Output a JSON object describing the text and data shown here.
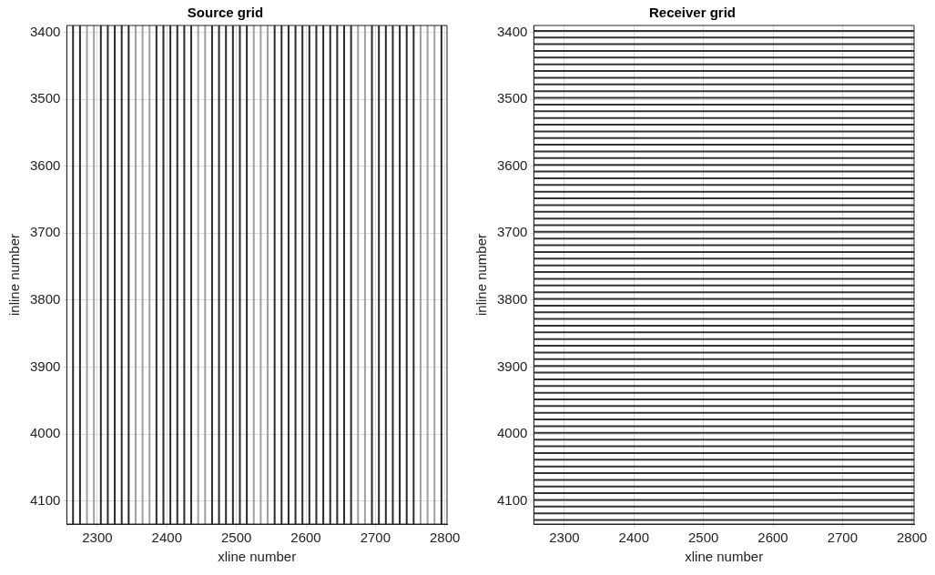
{
  "chart_data": [
    {
      "type": "line",
      "title": "Source grid",
      "xlabel": "xline number",
      "ylabel": "inline number",
      "xlim": [
        2256,
        2803
      ],
      "xticks": [
        2300,
        2400,
        2500,
        2600,
        2700,
        2800
      ],
      "ylim": [
        4134,
        3390
      ],
      "yticks": [
        3400,
        3500,
        3600,
        3700,
        3800,
        3900,
        4000,
        4100
      ],
      "grid": true,
      "series": [
        {
          "color": "#2b2b2b",
          "x": [
            2265,
            2265
          ],
          "values": [
            3390,
            4134
          ]
        },
        {
          "color": "#2b2b2b",
          "x": [
            2275,
            2275
          ],
          "values": [
            3390,
            4134
          ]
        },
        {
          "color": "#a0a0a0",
          "x": [
            2285,
            2285
          ],
          "values": [
            3390,
            4134
          ]
        },
        {
          "color": "#a0a0a0",
          "x": [
            2295,
            2295
          ],
          "values": [
            3390,
            4134
          ]
        },
        {
          "color": "#2b2b2b",
          "x": [
            2305,
            2305
          ],
          "values": [
            3390,
            4134
          ]
        },
        {
          "color": "#2b2b2b",
          "x": [
            2315,
            2315
          ],
          "values": [
            3390,
            4134
          ]
        },
        {
          "color": "#2b2b2b",
          "x": [
            2325,
            2325
          ],
          "values": [
            3390,
            4134
          ]
        },
        {
          "color": "#2b2b2b",
          "x": [
            2335,
            2335
          ],
          "values": [
            3390,
            4134
          ]
        },
        {
          "color": "#2b2b2b",
          "x": [
            2345,
            2345
          ],
          "values": [
            3390,
            4134
          ]
        },
        {
          "color": "#a0a0a0",
          "x": [
            2355,
            2355
          ],
          "values": [
            3390,
            4134
          ]
        },
        {
          "color": "#a0a0a0",
          "x": [
            2365,
            2365
          ],
          "values": [
            3390,
            4134
          ]
        },
        {
          "color": "#a0a0a0",
          "x": [
            2375,
            2375
          ],
          "values": [
            3390,
            4134
          ]
        },
        {
          "color": "#2b2b2b",
          "x": [
            2385,
            2385
          ],
          "values": [
            3390,
            4134
          ]
        },
        {
          "color": "#2b2b2b",
          "x": [
            2395,
            2395
          ],
          "values": [
            3390,
            4134
          ]
        },
        {
          "color": "#2b2b2b",
          "x": [
            2405,
            2405
          ],
          "values": [
            3390,
            4134
          ]
        },
        {
          "color": "#2b2b2b",
          "x": [
            2415,
            2415
          ],
          "values": [
            3390,
            4134
          ]
        },
        {
          "color": "#2b2b2b",
          "x": [
            2425,
            2425
          ],
          "values": [
            3390,
            4134
          ]
        },
        {
          "color": "#2b2b2b",
          "x": [
            2435,
            2435
          ],
          "values": [
            3390,
            4134
          ]
        },
        {
          "color": "#a0a0a0",
          "x": [
            2445,
            2445
          ],
          "values": [
            3390,
            4134
          ]
        },
        {
          "color": "#a0a0a0",
          "x": [
            2455,
            2455
          ],
          "values": [
            3390,
            4134
          ]
        },
        {
          "color": "#2b2b2b",
          "x": [
            2465,
            2465
          ],
          "values": [
            3390,
            4134
          ]
        },
        {
          "color": "#2b2b2b",
          "x": [
            2475,
            2475
          ],
          "values": [
            3390,
            4134
          ]
        },
        {
          "color": "#2b2b2b",
          "x": [
            2485,
            2485
          ],
          "values": [
            3390,
            4134
          ]
        },
        {
          "color": "#2b2b2b",
          "x": [
            2495,
            2495
          ],
          "values": [
            3390,
            4134
          ]
        },
        {
          "color": "#2b2b2b",
          "x": [
            2505,
            2505
          ],
          "values": [
            3390,
            4134
          ]
        },
        {
          "color": "#2b2b2b",
          "x": [
            2515,
            2515
          ],
          "values": [
            3390,
            4134
          ]
        },
        {
          "color": "#a0a0a0",
          "x": [
            2525,
            2525
          ],
          "values": [
            3390,
            4134
          ]
        },
        {
          "color": "#a0a0a0",
          "x": [
            2535,
            2535
          ],
          "values": [
            3390,
            4134
          ]
        },
        {
          "color": "#a0a0a0",
          "x": [
            2545,
            2545
          ],
          "values": [
            3390,
            4134
          ]
        },
        {
          "color": "#2b2b2b",
          "x": [
            2555,
            2555
          ],
          "values": [
            3390,
            4134
          ]
        },
        {
          "color": "#2b2b2b",
          "x": [
            2565,
            2565
          ],
          "values": [
            3390,
            4134
          ]
        },
        {
          "color": "#2b2b2b",
          "x": [
            2575,
            2575
          ],
          "values": [
            3390,
            4134
          ]
        },
        {
          "color": "#2b2b2b",
          "x": [
            2585,
            2585
          ],
          "values": [
            3390,
            4134
          ]
        },
        {
          "color": "#2b2b2b",
          "x": [
            2595,
            2595
          ],
          "values": [
            3390,
            4134
          ]
        },
        {
          "color": "#2b2b2b",
          "x": [
            2605,
            2605
          ],
          "values": [
            3390,
            4134
          ]
        },
        {
          "color": "#2b2b2b",
          "x": [
            2615,
            2615
          ],
          "values": [
            3390,
            4134
          ]
        },
        {
          "color": "#2b2b2b",
          "x": [
            2625,
            2625
          ],
          "values": [
            3390,
            4134
          ]
        },
        {
          "color": "#2b2b2b",
          "x": [
            2635,
            2635
          ],
          "values": [
            3390,
            4134
          ]
        },
        {
          "color": "#2b2b2b",
          "x": [
            2645,
            2645
          ],
          "values": [
            3390,
            4134
          ]
        },
        {
          "color": "#2b2b2b",
          "x": [
            2655,
            2655
          ],
          "values": [
            3390,
            4134
          ]
        },
        {
          "color": "#2b2b2b",
          "x": [
            2665,
            2665
          ],
          "values": [
            3390,
            4134
          ]
        },
        {
          "color": "#a0a0a0",
          "x": [
            2675,
            2675
          ],
          "values": [
            3390,
            4134
          ]
        },
        {
          "color": "#a0a0a0",
          "x": [
            2685,
            2685
          ],
          "values": [
            3390,
            4134
          ]
        },
        {
          "color": "#2b2b2b",
          "x": [
            2695,
            2695
          ],
          "values": [
            3390,
            4134
          ]
        },
        {
          "color": "#2b2b2b",
          "x": [
            2705,
            2705
          ],
          "values": [
            3390,
            4134
          ]
        },
        {
          "color": "#2b2b2b",
          "x": [
            2715,
            2715
          ],
          "values": [
            3390,
            4134
          ]
        },
        {
          "color": "#2b2b2b",
          "x": [
            2725,
            2725
          ],
          "values": [
            3390,
            4134
          ]
        },
        {
          "color": "#2b2b2b",
          "x": [
            2735,
            2735
          ],
          "values": [
            3390,
            4134
          ]
        },
        {
          "color": "#2b2b2b",
          "x": [
            2745,
            2745
          ],
          "values": [
            3390,
            4134
          ]
        },
        {
          "color": "#2b2b2b",
          "x": [
            2755,
            2755
          ],
          "values": [
            3390,
            4134
          ]
        },
        {
          "color": "#a0a0a0",
          "x": [
            2765,
            2765
          ],
          "values": [
            3390,
            4134
          ]
        },
        {
          "color": "#a0a0a0",
          "x": [
            2775,
            2775
          ],
          "values": [
            3390,
            4134
          ]
        },
        {
          "color": "#a0a0a0",
          "x": [
            2785,
            2785
          ],
          "values": [
            3390,
            4134
          ]
        },
        {
          "color": "#2b2b2b",
          "x": [
            2795,
            2795
          ],
          "values": [
            3390,
            4134
          ]
        }
      ]
    },
    {
      "type": "line",
      "title": "Receiver grid",
      "xlabel": "xline number",
      "ylabel": "inline number",
      "xlim": [
        2256,
        2803
      ],
      "xticks": [
        2300,
        2400,
        2500,
        2600,
        2700,
        2800
      ],
      "ylim": [
        4134,
        3390
      ],
      "yticks": [
        3400,
        3500,
        3600,
        3700,
        3800,
        3900,
        4000,
        4100
      ],
      "grid": true,
      "series": [
        {
          "color": "#333333",
          "x": [
            2256,
            2803
          ],
          "values": [
            3398,
            3398
          ]
        },
        {
          "color": "#333333",
          "x": [
            2256,
            2803
          ],
          "values": [
            3408,
            3408
          ]
        },
        {
          "color": "#333333",
          "x": [
            2256,
            2803
          ],
          "values": [
            3418,
            3418
          ]
        },
        {
          "color": "#333333",
          "x": [
            2256,
            2803
          ],
          "values": [
            3428,
            3428
          ]
        },
        {
          "color": "#333333",
          "x": [
            2256,
            2803
          ],
          "values": [
            3438,
            3438
          ]
        },
        {
          "color": "#333333",
          "x": [
            2256,
            2803
          ],
          "values": [
            3448,
            3448
          ]
        },
        {
          "color": "#333333",
          "x": [
            2256,
            2803
          ],
          "values": [
            3458,
            3458
          ]
        },
        {
          "color": "#333333",
          "x": [
            2256,
            2803
          ],
          "values": [
            3468,
            3468
          ]
        },
        {
          "color": "#333333",
          "x": [
            2256,
            2803
          ],
          "values": [
            3478,
            3478
          ]
        },
        {
          "color": "#333333",
          "x": [
            2256,
            2803
          ],
          "values": [
            3488,
            3488
          ]
        },
        {
          "color": "#333333",
          "x": [
            2256,
            2803
          ],
          "values": [
            3498,
            3498
          ]
        },
        {
          "color": "#333333",
          "x": [
            2256,
            2803
          ],
          "values": [
            3508,
            3508
          ]
        },
        {
          "color": "#333333",
          "x": [
            2256,
            2803
          ],
          "values": [
            3518,
            3518
          ]
        },
        {
          "color": "#333333",
          "x": [
            2256,
            2803
          ],
          "values": [
            3528,
            3528
          ]
        },
        {
          "color": "#333333",
          "x": [
            2256,
            2803
          ],
          "values": [
            3538,
            3538
          ]
        },
        {
          "color": "#333333",
          "x": [
            2256,
            2803
          ],
          "values": [
            3548,
            3548
          ]
        },
        {
          "color": "#333333",
          "x": [
            2256,
            2803
          ],
          "values": [
            3558,
            3558
          ]
        },
        {
          "color": "#333333",
          "x": [
            2256,
            2803
          ],
          "values": [
            3568,
            3568
          ]
        },
        {
          "color": "#333333",
          "x": [
            2256,
            2803
          ],
          "values": [
            3578,
            3578
          ]
        },
        {
          "color": "#333333",
          "x": [
            2256,
            2803
          ],
          "values": [
            3588,
            3588
          ]
        },
        {
          "color": "#333333",
          "x": [
            2256,
            2803
          ],
          "values": [
            3598,
            3598
          ]
        },
        {
          "color": "#333333",
          "x": [
            2256,
            2803
          ],
          "values": [
            3608,
            3608
          ]
        },
        {
          "color": "#333333",
          "x": [
            2256,
            2803
          ],
          "values": [
            3618,
            3618
          ]
        },
        {
          "color": "#333333",
          "x": [
            2256,
            2803
          ],
          "values": [
            3628,
            3628
          ]
        },
        {
          "color": "#333333",
          "x": [
            2256,
            2803
          ],
          "values": [
            3638,
            3638
          ]
        },
        {
          "color": "#333333",
          "x": [
            2256,
            2803
          ],
          "values": [
            3648,
            3648
          ]
        },
        {
          "color": "#333333",
          "x": [
            2256,
            2803
          ],
          "values": [
            3658,
            3658
          ]
        },
        {
          "color": "#333333",
          "x": [
            2256,
            2803
          ],
          "values": [
            3668,
            3668
          ]
        },
        {
          "color": "#333333",
          "x": [
            2256,
            2803
          ],
          "values": [
            3678,
            3678
          ]
        },
        {
          "color": "#333333",
          "x": [
            2256,
            2803
          ],
          "values": [
            3688,
            3688
          ]
        },
        {
          "color": "#333333",
          "x": [
            2256,
            2803
          ],
          "values": [
            3698,
            3698
          ]
        },
        {
          "color": "#333333",
          "x": [
            2256,
            2803
          ],
          "values": [
            3708,
            3708
          ]
        },
        {
          "color": "#333333",
          "x": [
            2256,
            2803
          ],
          "values": [
            3718,
            3718
          ]
        },
        {
          "color": "#333333",
          "x": [
            2256,
            2803
          ],
          "values": [
            3728,
            3728
          ]
        },
        {
          "color": "#333333",
          "x": [
            2256,
            2803
          ],
          "values": [
            3738,
            3738
          ]
        },
        {
          "color": "#333333",
          "x": [
            2256,
            2803
          ],
          "values": [
            3748,
            3748
          ]
        },
        {
          "color": "#333333",
          "x": [
            2256,
            2803
          ],
          "values": [
            3758,
            3758
          ]
        },
        {
          "color": "#333333",
          "x": [
            2256,
            2803
          ],
          "values": [
            3768,
            3768
          ]
        },
        {
          "color": "#333333",
          "x": [
            2256,
            2803
          ],
          "values": [
            3778,
            3778
          ]
        },
        {
          "color": "#333333",
          "x": [
            2256,
            2803
          ],
          "values": [
            3788,
            3788
          ]
        },
        {
          "color": "#333333",
          "x": [
            2256,
            2803
          ],
          "values": [
            3798,
            3798
          ]
        },
        {
          "color": "#333333",
          "x": [
            2256,
            2803
          ],
          "values": [
            3808,
            3808
          ]
        },
        {
          "color": "#333333",
          "x": [
            2256,
            2803
          ],
          "values": [
            3818,
            3818
          ]
        },
        {
          "color": "#333333",
          "x": [
            2256,
            2803
          ],
          "values": [
            3828,
            3828
          ]
        },
        {
          "color": "#333333",
          "x": [
            2256,
            2803
          ],
          "values": [
            3838,
            3838
          ]
        },
        {
          "color": "#333333",
          "x": [
            2256,
            2803
          ],
          "values": [
            3848,
            3848
          ]
        },
        {
          "color": "#333333",
          "x": [
            2256,
            2803
          ],
          "values": [
            3858,
            3858
          ]
        },
        {
          "color": "#333333",
          "x": [
            2256,
            2803
          ],
          "values": [
            3868,
            3868
          ]
        },
        {
          "color": "#333333",
          "x": [
            2256,
            2803
          ],
          "values": [
            3878,
            3878
          ]
        },
        {
          "color": "#333333",
          "x": [
            2256,
            2803
          ],
          "values": [
            3888,
            3888
          ]
        },
        {
          "color": "#333333",
          "x": [
            2256,
            2803
          ],
          "values": [
            3898,
            3898
          ]
        },
        {
          "color": "#333333",
          "x": [
            2256,
            2803
          ],
          "values": [
            3908,
            3908
          ]
        },
        {
          "color": "#333333",
          "x": [
            2256,
            2803
          ],
          "values": [
            3918,
            3918
          ]
        },
        {
          "color": "#333333",
          "x": [
            2256,
            2803
          ],
          "values": [
            3928,
            3928
          ]
        },
        {
          "color": "#333333",
          "x": [
            2256,
            2803
          ],
          "values": [
            3938,
            3938
          ]
        },
        {
          "color": "#333333",
          "x": [
            2256,
            2803
          ],
          "values": [
            3948,
            3948
          ]
        },
        {
          "color": "#333333",
          "x": [
            2256,
            2803
          ],
          "values": [
            3958,
            3958
          ]
        },
        {
          "color": "#333333",
          "x": [
            2256,
            2803
          ],
          "values": [
            3968,
            3968
          ]
        },
        {
          "color": "#333333",
          "x": [
            2256,
            2803
          ],
          "values": [
            3978,
            3978
          ]
        },
        {
          "color": "#333333",
          "x": [
            2256,
            2803
          ],
          "values": [
            3988,
            3988
          ]
        },
        {
          "color": "#333333",
          "x": [
            2256,
            2803
          ],
          "values": [
            3998,
            3998
          ]
        },
        {
          "color": "#333333",
          "x": [
            2256,
            2803
          ],
          "values": [
            4008,
            4008
          ]
        },
        {
          "color": "#333333",
          "x": [
            2256,
            2803
          ],
          "values": [
            4018,
            4018
          ]
        },
        {
          "color": "#333333",
          "x": [
            2256,
            2803
          ],
          "values": [
            4028,
            4028
          ]
        },
        {
          "color": "#333333",
          "x": [
            2256,
            2803
          ],
          "values": [
            4038,
            4038
          ]
        },
        {
          "color": "#333333",
          "x": [
            2256,
            2803
          ],
          "values": [
            4048,
            4048
          ]
        },
        {
          "color": "#333333",
          "x": [
            2256,
            2803
          ],
          "values": [
            4058,
            4058
          ]
        },
        {
          "color": "#333333",
          "x": [
            2256,
            2803
          ],
          "values": [
            4068,
            4068
          ]
        },
        {
          "color": "#333333",
          "x": [
            2256,
            2803
          ],
          "values": [
            4078,
            4078
          ]
        },
        {
          "color": "#333333",
          "x": [
            2256,
            2803
          ],
          "values": [
            4088,
            4088
          ]
        },
        {
          "color": "#333333",
          "x": [
            2256,
            2803
          ],
          "values": [
            4098,
            4098
          ]
        },
        {
          "color": "#333333",
          "x": [
            2256,
            2803
          ],
          "values": [
            4108,
            4108
          ]
        },
        {
          "color": "#333333",
          "x": [
            2256,
            2803
          ],
          "values": [
            4118,
            4118
          ]
        },
        {
          "color": "#333333",
          "x": [
            2256,
            2803
          ],
          "values": [
            4128,
            4128
          ]
        }
      ]
    }
  ]
}
